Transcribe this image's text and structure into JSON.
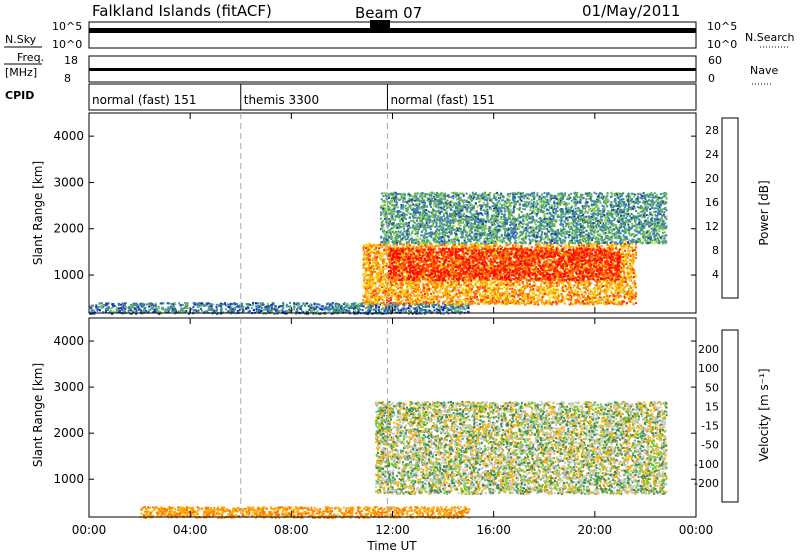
{
  "header": {
    "station": "Falkland Islands (fitACF)",
    "beam": "Beam 07",
    "date": "01/May/2011"
  },
  "top_panels": {
    "nsky": {
      "label": "N.Sky",
      "ticks": [
        "10^5",
        "10^0"
      ]
    },
    "nsearch": {
      "label": "N.Search",
      "ticks": [
        "10^5",
        "10^0"
      ]
    },
    "freq": {
      "label_line1": "Freq.",
      "label_line2": "[MHz]",
      "ticks": [
        "18",
        "8"
      ]
    },
    "nave": {
      "label": "Nave",
      "ticks": [
        "60",
        "0"
      ]
    },
    "cpid": {
      "label": "CPID",
      "segments": [
        {
          "name": "normal (fast) 151",
          "start_hour": 0,
          "end_hour": 6
        },
        {
          "name": "themis 3300",
          "start_hour": 6,
          "end_hour": 11.8
        },
        {
          "name": "normal (fast) 151",
          "start_hour": 11.8,
          "end_hour": 24
        }
      ]
    }
  },
  "chart_data": [
    {
      "type": "heatmap",
      "title": "Power",
      "ylabel": "Slant Range [km]",
      "colorbar_label": "Power [dB]",
      "xlim_hours": [
        0,
        24
      ],
      "ylim": [
        180,
        4500
      ],
      "yticks": [
        1000,
        2000,
        3000,
        4000
      ],
      "colorbar_ticks": [
        "4",
        "8",
        "12",
        "16",
        "20",
        "24",
        "28"
      ],
      "colorbar_colors": [
        "#0000ff",
        "#1e3fae",
        "#3e7fb5",
        "#4a9e74",
        "#77c84a",
        "#c4dd3a",
        "#ffd400",
        "#ffa500",
        "#ff7300",
        "#ff3000",
        "#ff0000"
      ],
      "regions": [
        {
          "desc": "near range ground scatter",
          "x": [
            0,
            15
          ],
          "y": [
            180,
            420
          ],
          "level": 8
        },
        {
          "desc": "echo band lower",
          "x": [
            10.8,
            21.6
          ],
          "y": [
            380,
            1700
          ],
          "level": 22
        },
        {
          "desc": "echo band core",
          "x": [
            11.8,
            21
          ],
          "y": [
            900,
            1600
          ],
          "level": 28
        },
        {
          "desc": "echo band upper",
          "x": [
            11.5,
            22.8
          ],
          "y": [
            1700,
            2800
          ],
          "level": 10
        }
      ]
    },
    {
      "type": "heatmap",
      "title": "Velocity",
      "ylabel": "Slant Range [km]",
      "xlabel": "Time UT",
      "colorbar_label": "Velocity [m s⁻¹]",
      "xlim_hours": [
        0,
        24
      ],
      "ylim": [
        180,
        4500
      ],
      "yticks": [
        1000,
        2000,
        3000,
        4000
      ],
      "xtick_labels": [
        "00:00",
        "04:00",
        "08:00",
        "12:00",
        "16:00",
        "20:00",
        "00:00"
      ],
      "colorbar_ticks": [
        "200",
        "100",
        "50",
        "15",
        "-15",
        "-50",
        "-100",
        "-200"
      ],
      "colorbar_colors": [
        "#1a3caa",
        "#2f63b8",
        "#3d8a5c",
        "#66cc33",
        "#c8c8c8",
        "#ffb000",
        "#ff7a00",
        "#ff3a00",
        "#ee0000"
      ],
      "regions": [
        {
          "desc": "near range low velocity",
          "x": [
            2,
            15
          ],
          "y": [
            180,
            420
          ],
          "velocity": -50
        },
        {
          "desc": "ground scatter band",
          "x": [
            11.3,
            22.8
          ],
          "y": [
            700,
            2700
          ],
          "velocity": 0
        }
      ]
    }
  ]
}
